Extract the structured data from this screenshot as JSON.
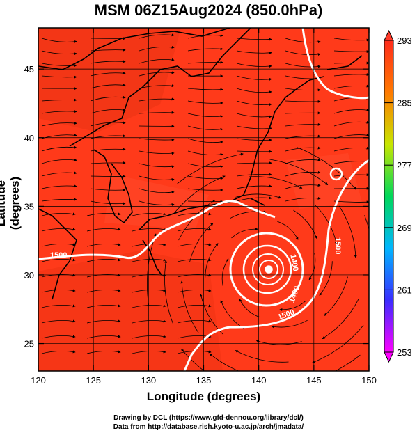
{
  "title": "MSM 06Z15Aug2024 (850.0hPa)",
  "axes": {
    "xlabel": "Longitude (degrees)",
    "ylabel": "Latitude  (degrees)",
    "xticks": [
      "120",
      "125",
      "130",
      "135",
      "140",
      "145",
      "150"
    ],
    "yticks": [
      "45",
      "40",
      "35",
      "30",
      "25"
    ],
    "xlim": [
      120,
      150
    ],
    "ylim": [
      23,
      48
    ]
  },
  "colorbar": {
    "ticks": [
      "293",
      "285",
      "277",
      "269",
      "261",
      "253"
    ],
    "min": 253,
    "max": 293,
    "colors": [
      "#ff00ff",
      "#3a2dff",
      "#00b6ff",
      "#00d85a",
      "#c8e600",
      "#ff7a00",
      "#ff2b1c"
    ]
  },
  "contours": {
    "labels": [
      "1500",
      "1500",
      "1500",
      "1400",
      "1400"
    ],
    "colors": {
      "line": "#ffffff",
      "field": "#ff3a1a",
      "warm": "#e53212",
      "light": "#ff5236"
    }
  },
  "footer": {
    "line1": "Drawing by DCL (https://www.gfd-dennou.org/library/dcl/)",
    "line2": "Data from http://database.rish.kyoto-u.ac.jp/arch/jmadata/"
  }
}
